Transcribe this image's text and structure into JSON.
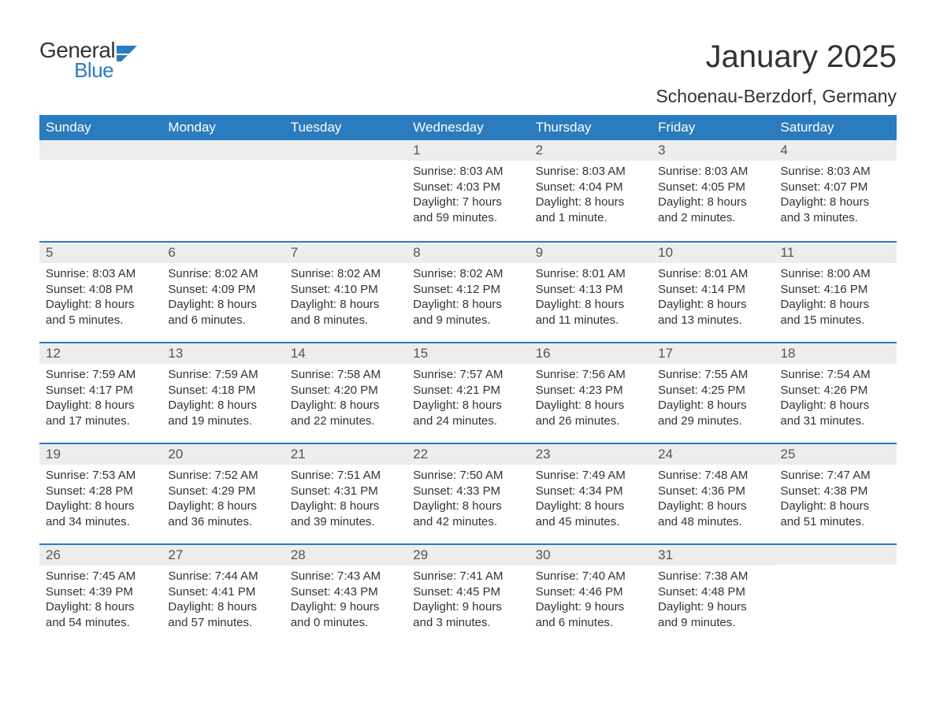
{
  "logo": {
    "general": "General",
    "blue": "Blue",
    "icon_color": "#2b7bbf"
  },
  "title": "January 2025",
  "location": "Schoenau-Berzdorf, Germany",
  "colors": {
    "header_bg": "#2b7bbf",
    "header_text": "#ffffff",
    "daynum_bg": "#ededed",
    "body_text": "#333333",
    "row_border": "#2b7bbf"
  },
  "day_names": [
    "Sunday",
    "Monday",
    "Tuesday",
    "Wednesday",
    "Thursday",
    "Friday",
    "Saturday"
  ],
  "weeks": [
    [
      {
        "num": "",
        "sunrise": "",
        "sunset": "",
        "daylight": ""
      },
      {
        "num": "",
        "sunrise": "",
        "sunset": "",
        "daylight": ""
      },
      {
        "num": "",
        "sunrise": "",
        "sunset": "",
        "daylight": ""
      },
      {
        "num": "1",
        "sunrise": "Sunrise: 8:03 AM",
        "sunset": "Sunset: 4:03 PM",
        "daylight": "Daylight: 7 hours and 59 minutes."
      },
      {
        "num": "2",
        "sunrise": "Sunrise: 8:03 AM",
        "sunset": "Sunset: 4:04 PM",
        "daylight": "Daylight: 8 hours and 1 minute."
      },
      {
        "num": "3",
        "sunrise": "Sunrise: 8:03 AM",
        "sunset": "Sunset: 4:05 PM",
        "daylight": "Daylight: 8 hours and 2 minutes."
      },
      {
        "num": "4",
        "sunrise": "Sunrise: 8:03 AM",
        "sunset": "Sunset: 4:07 PM",
        "daylight": "Daylight: 8 hours and 3 minutes."
      }
    ],
    [
      {
        "num": "5",
        "sunrise": "Sunrise: 8:03 AM",
        "sunset": "Sunset: 4:08 PM",
        "daylight": "Daylight: 8 hours and 5 minutes."
      },
      {
        "num": "6",
        "sunrise": "Sunrise: 8:02 AM",
        "sunset": "Sunset: 4:09 PM",
        "daylight": "Daylight: 8 hours and 6 minutes."
      },
      {
        "num": "7",
        "sunrise": "Sunrise: 8:02 AM",
        "sunset": "Sunset: 4:10 PM",
        "daylight": "Daylight: 8 hours and 8 minutes."
      },
      {
        "num": "8",
        "sunrise": "Sunrise: 8:02 AM",
        "sunset": "Sunset: 4:12 PM",
        "daylight": "Daylight: 8 hours and 9 minutes."
      },
      {
        "num": "9",
        "sunrise": "Sunrise: 8:01 AM",
        "sunset": "Sunset: 4:13 PM",
        "daylight": "Daylight: 8 hours and 11 minutes."
      },
      {
        "num": "10",
        "sunrise": "Sunrise: 8:01 AM",
        "sunset": "Sunset: 4:14 PM",
        "daylight": "Daylight: 8 hours and 13 minutes."
      },
      {
        "num": "11",
        "sunrise": "Sunrise: 8:00 AM",
        "sunset": "Sunset: 4:16 PM",
        "daylight": "Daylight: 8 hours and 15 minutes."
      }
    ],
    [
      {
        "num": "12",
        "sunrise": "Sunrise: 7:59 AM",
        "sunset": "Sunset: 4:17 PM",
        "daylight": "Daylight: 8 hours and 17 minutes."
      },
      {
        "num": "13",
        "sunrise": "Sunrise: 7:59 AM",
        "sunset": "Sunset: 4:18 PM",
        "daylight": "Daylight: 8 hours and 19 minutes."
      },
      {
        "num": "14",
        "sunrise": "Sunrise: 7:58 AM",
        "sunset": "Sunset: 4:20 PM",
        "daylight": "Daylight: 8 hours and 22 minutes."
      },
      {
        "num": "15",
        "sunrise": "Sunrise: 7:57 AM",
        "sunset": "Sunset: 4:21 PM",
        "daylight": "Daylight: 8 hours and 24 minutes."
      },
      {
        "num": "16",
        "sunrise": "Sunrise: 7:56 AM",
        "sunset": "Sunset: 4:23 PM",
        "daylight": "Daylight: 8 hours and 26 minutes."
      },
      {
        "num": "17",
        "sunrise": "Sunrise: 7:55 AM",
        "sunset": "Sunset: 4:25 PM",
        "daylight": "Daylight: 8 hours and 29 minutes."
      },
      {
        "num": "18",
        "sunrise": "Sunrise: 7:54 AM",
        "sunset": "Sunset: 4:26 PM",
        "daylight": "Daylight: 8 hours and 31 minutes."
      }
    ],
    [
      {
        "num": "19",
        "sunrise": "Sunrise: 7:53 AM",
        "sunset": "Sunset: 4:28 PM",
        "daylight": "Daylight: 8 hours and 34 minutes."
      },
      {
        "num": "20",
        "sunrise": "Sunrise: 7:52 AM",
        "sunset": "Sunset: 4:29 PM",
        "daylight": "Daylight: 8 hours and 36 minutes."
      },
      {
        "num": "21",
        "sunrise": "Sunrise: 7:51 AM",
        "sunset": "Sunset: 4:31 PM",
        "daylight": "Daylight: 8 hours and 39 minutes."
      },
      {
        "num": "22",
        "sunrise": "Sunrise: 7:50 AM",
        "sunset": "Sunset: 4:33 PM",
        "daylight": "Daylight: 8 hours and 42 minutes."
      },
      {
        "num": "23",
        "sunrise": "Sunrise: 7:49 AM",
        "sunset": "Sunset: 4:34 PM",
        "daylight": "Daylight: 8 hours and 45 minutes."
      },
      {
        "num": "24",
        "sunrise": "Sunrise: 7:48 AM",
        "sunset": "Sunset: 4:36 PM",
        "daylight": "Daylight: 8 hours and 48 minutes."
      },
      {
        "num": "25",
        "sunrise": "Sunrise: 7:47 AM",
        "sunset": "Sunset: 4:38 PM",
        "daylight": "Daylight: 8 hours and 51 minutes."
      }
    ],
    [
      {
        "num": "26",
        "sunrise": "Sunrise: 7:45 AM",
        "sunset": "Sunset: 4:39 PM",
        "daylight": "Daylight: 8 hours and 54 minutes."
      },
      {
        "num": "27",
        "sunrise": "Sunrise: 7:44 AM",
        "sunset": "Sunset: 4:41 PM",
        "daylight": "Daylight: 8 hours and 57 minutes."
      },
      {
        "num": "28",
        "sunrise": "Sunrise: 7:43 AM",
        "sunset": "Sunset: 4:43 PM",
        "daylight": "Daylight: 9 hours and 0 minutes."
      },
      {
        "num": "29",
        "sunrise": "Sunrise: 7:41 AM",
        "sunset": "Sunset: 4:45 PM",
        "daylight": "Daylight: 9 hours and 3 minutes."
      },
      {
        "num": "30",
        "sunrise": "Sunrise: 7:40 AM",
        "sunset": "Sunset: 4:46 PM",
        "daylight": "Daylight: 9 hours and 6 minutes."
      },
      {
        "num": "31",
        "sunrise": "Sunrise: 7:38 AM",
        "sunset": "Sunset: 4:48 PM",
        "daylight": "Daylight: 9 hours and 9 minutes."
      },
      {
        "num": "",
        "sunrise": "",
        "sunset": "",
        "daylight": ""
      }
    ]
  ]
}
